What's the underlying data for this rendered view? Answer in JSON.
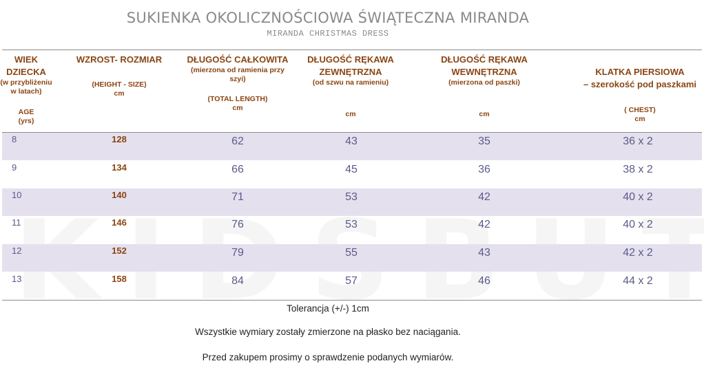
{
  "title": "SUKIENKA OKOLICZNOŚCIOWA ŚWIĄTECZNA MIRANDA",
  "subtitle": "MIRANDA CHRISTMAS DRESS",
  "watermark": "KIDSBUTIK.PL",
  "headers": {
    "age": {
      "line1": "WIEK",
      "line2": "DZIECKA",
      "note1": "(w przybliżeniu",
      "note2": "w latach)",
      "en": "AGE",
      "unit": "(yrs)"
    },
    "height": {
      "line1": "WZROST- ROZMIAR",
      "en": "(HEIGHT - SIZE)",
      "unit": "cm"
    },
    "length": {
      "line1": "DŁUGOŚĆ CAŁKOWITA",
      "note1": "(mierzona od ramienia przy",
      "note2": "szyi)",
      "en": "(TOTAL LENGTH)",
      "unit": "cm"
    },
    "sleeve_out": {
      "line1": "DŁUGOŚĆ RĘKAWA",
      "line2": "ZEWNĘTRZNA",
      "note1": "(od szwu na ramieniu)",
      "unit": "cm"
    },
    "sleeve_in": {
      "line1": "DŁUGOŚĆ RĘKAWA",
      "line2": "WEWNĘTRZNA",
      "note1": "(mierzona od paszki)",
      "unit": "cm"
    },
    "chest": {
      "line1": "KLATKA PIERSIOWA",
      "line2": "– szerokość pod paszkami",
      "en": "( CHEST)",
      "unit": "cm"
    }
  },
  "rows": [
    {
      "age": "8",
      "height": "128",
      "length": "62",
      "sleeve_out": "43",
      "sleeve_in": "35",
      "chest": "36 x 2"
    },
    {
      "age": "9",
      "height": "134",
      "length": "66",
      "sleeve_out": "45",
      "sleeve_in": "36",
      "chest": "38 x 2"
    },
    {
      "age": "10",
      "height": "140",
      "length": "71",
      "sleeve_out": "53",
      "sleeve_in": "42",
      "chest": "40 x 2"
    },
    {
      "age": "11",
      "height": "146",
      "length": "76",
      "sleeve_out": "53",
      "sleeve_in": "42",
      "chest": "40 x 2"
    },
    {
      "age": "12",
      "height": "152",
      "length": "79",
      "sleeve_out": "55",
      "sleeve_in": "43",
      "chest": "42 x 2"
    },
    {
      "age": "13",
      "height": "158",
      "length": "84",
      "sleeve_out": "57",
      "sleeve_in": "46",
      "chest": "44 x 2"
    }
  ],
  "footer": {
    "tolerance": "Tolerancja (+/-) 1cm",
    "note1": "Wszystkie wymiary zostały zmierzone na płasko bez naciągania.",
    "note2": "Przed zakupem prosimy o sprawdzenie podanych wymiarów."
  },
  "colors": {
    "header_text": "#8b4513",
    "shade": "#e5e0ee",
    "value_text": "#5a5a8a"
  }
}
